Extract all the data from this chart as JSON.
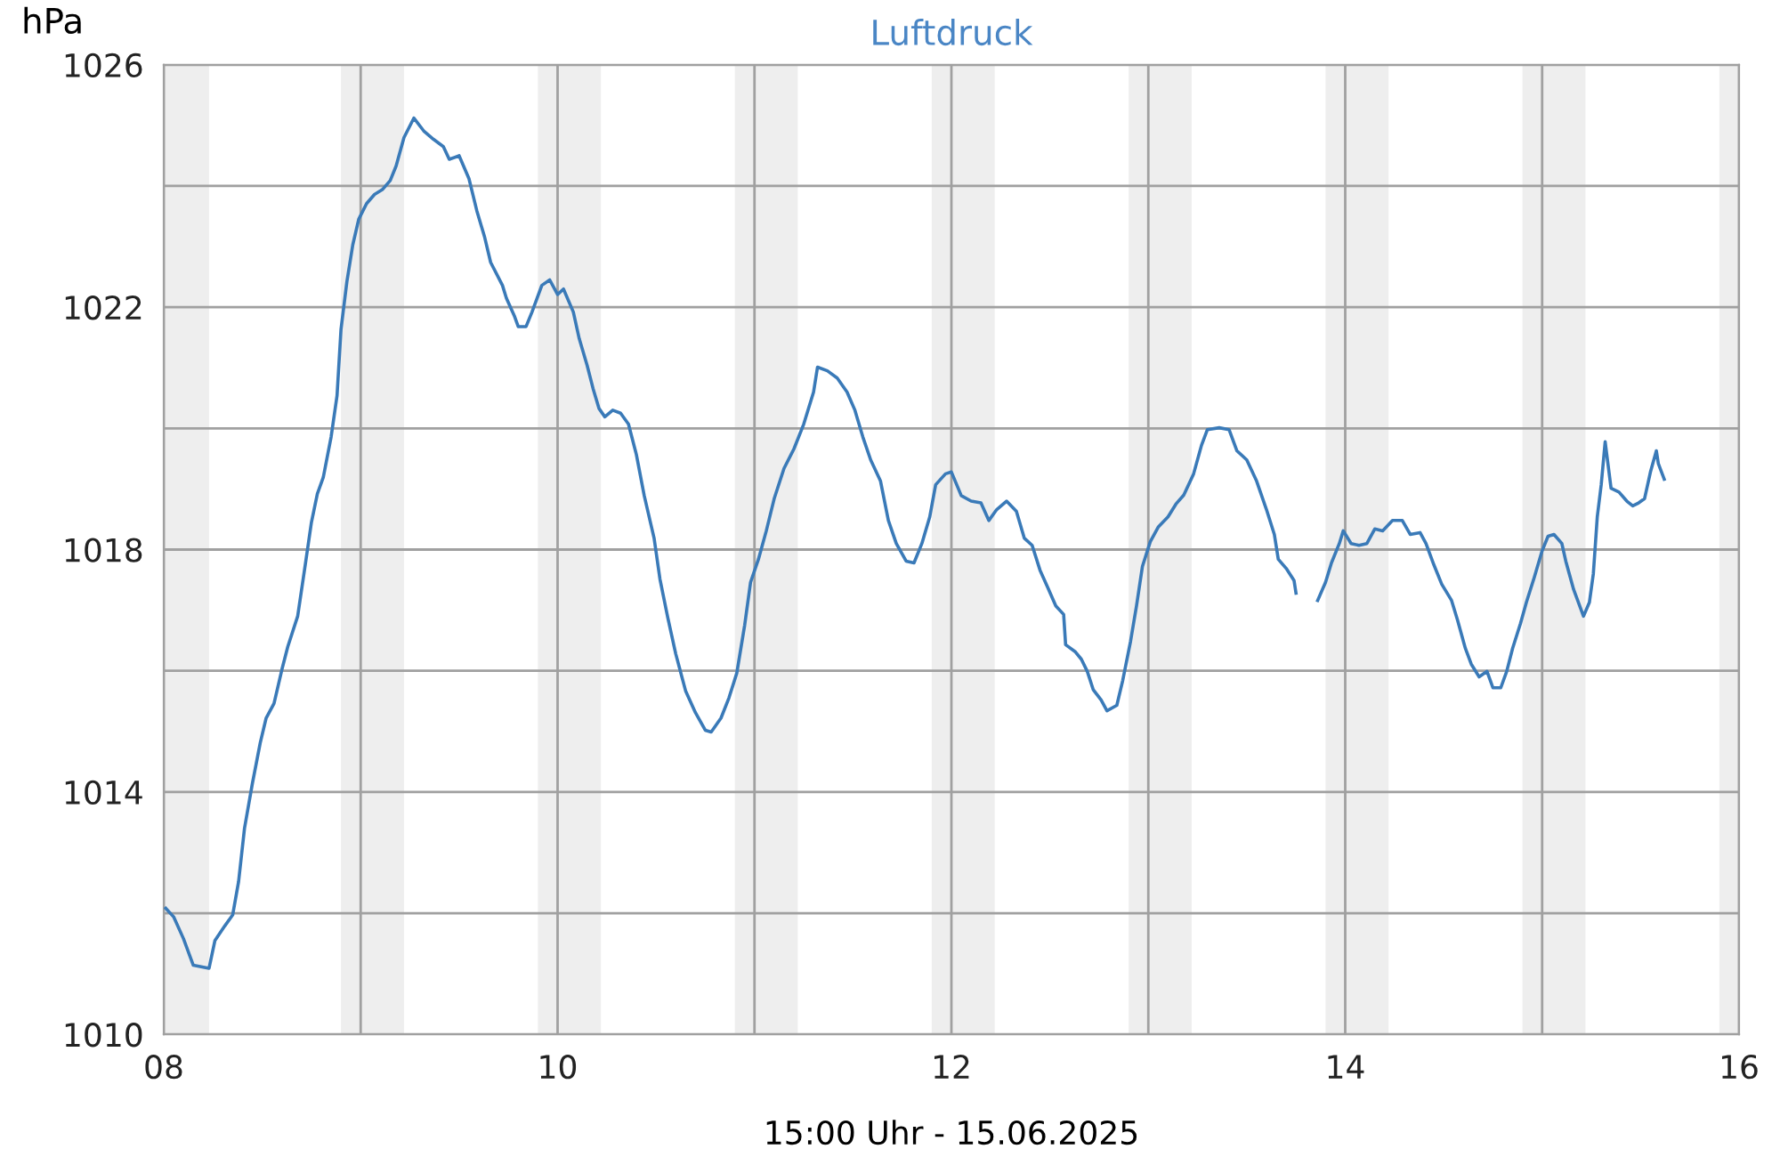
{
  "chart_data": {
    "type": "line",
    "title": "Luftdruck",
    "ylabel": "hPa",
    "xlabel": "15:00 Uhr - 15.06.2025",
    "xlim": [
      8,
      16
    ],
    "ylim": [
      1010,
      1026
    ],
    "xticks": [
      {
        "value": 8,
        "label": "08"
      },
      {
        "value": 9,
        "label": null
      },
      {
        "value": 10,
        "label": "10"
      },
      {
        "value": 11,
        "label": null
      },
      {
        "value": 12,
        "label": "12"
      },
      {
        "value": 13,
        "label": null
      },
      {
        "value": 14,
        "label": "14"
      },
      {
        "value": 15,
        "label": null
      },
      {
        "value": 16,
        "label": "16"
      }
    ],
    "yticks": [
      1010,
      {
        "value": 1012,
        "label": null
      },
      1014,
      {
        "value": 1016,
        "label": null
      },
      1018,
      {
        "value": 1020,
        "label": null
      },
      1022,
      {
        "value": 1024,
        "label": null
      },
      1026
    ],
    "grid": true,
    "legend": false,
    "marker": "none",
    "line_style": "solid",
    "bands": [
      {
        "axis": "x",
        "from": 8.0,
        "to": 8.23,
        "color": "#eeeeee"
      },
      {
        "axis": "x",
        "from": 8.9,
        "to": 9.22,
        "color": "#eeeeee"
      },
      {
        "axis": "x",
        "from": 9.9,
        "to": 10.22,
        "color": "#eeeeee"
      },
      {
        "axis": "x",
        "from": 10.9,
        "to": 11.22,
        "color": "#eeeeee"
      },
      {
        "axis": "x",
        "from": 11.9,
        "to": 12.22,
        "color": "#eeeeee"
      },
      {
        "axis": "x",
        "from": 12.9,
        "to": 13.22,
        "color": "#eeeeee"
      },
      {
        "axis": "x",
        "from": 13.9,
        "to": 14.22,
        "color": "#eeeeee"
      },
      {
        "axis": "x",
        "from": 14.9,
        "to": 15.22,
        "color": "#eeeeee"
      },
      {
        "axis": "x",
        "from": 15.9,
        "to": 16.0,
        "color": "#eeeeee"
      }
    ],
    "series": [
      {
        "color": "#3a7ab8",
        "x": [
          8.01,
          8.05,
          8.1,
          8.15,
          8.23,
          8.26,
          8.31,
          8.35,
          8.38,
          8.41,
          8.45,
          8.49,
          8.52,
          8.56,
          8.6,
          8.63,
          8.68,
          8.72,
          8.75,
          8.78,
          8.81,
          8.85,
          8.88,
          8.9,
          8.93,
          8.96,
          8.99,
          9.03,
          9.07,
          9.11,
          9.15,
          9.18,
          9.22,
          9.27,
          9.32,
          9.37,
          9.42,
          9.45,
          9.5,
          9.55,
          9.59,
          9.63,
          9.66,
          9.72,
          9.74,
          9.78,
          9.8,
          9.84,
          9.87,
          9.92,
          9.96,
          10.0,
          10.03,
          10.08,
          10.11,
          10.15,
          10.18,
          10.21,
          10.24,
          10.28,
          10.32,
          10.36,
          10.4,
          10.44,
          10.49,
          10.52,
          10.56,
          10.6,
          10.65,
          10.7,
          10.75,
          10.78,
          10.83,
          10.87,
          10.91,
          10.95,
          10.98,
          11.02,
          11.06,
          11.1,
          11.15,
          11.2,
          11.25,
          11.3,
          11.32,
          11.37,
          11.42,
          11.47,
          11.51,
          11.55,
          11.59,
          11.64,
          11.68,
          11.72,
          11.77,
          11.81,
          11.85,
          11.89,
          11.92,
          11.97,
          12.0,
          12.05,
          12.1,
          12.15,
          12.19,
          12.23,
          12.28,
          12.33,
          12.37,
          12.41,
          12.45,
          12.49,
          12.53,
          12.57,
          12.58,
          12.63,
          12.66,
          12.69,
          12.72,
          12.76,
          12.79,
          12.84,
          12.87,
          12.91,
          12.94,
          12.97,
          13.01,
          13.05,
          13.1,
          13.14,
          13.18,
          13.23,
          13.27,
          13.3,
          13.36,
          13.41,
          13.45,
          13.5,
          13.55,
          13.6,
          13.64,
          13.66,
          13.7,
          13.74,
          13.75,
          13.8,
          13.86,
          13.9,
          13.93,
          13.97,
          13.99,
          14.03,
          14.07,
          14.11,
          14.15,
          14.19,
          14.24,
          14.29,
          14.33,
          14.38,
          14.41,
          14.45,
          14.49,
          14.54,
          14.57,
          14.61,
          14.64,
          14.68,
          14.72,
          14.75,
          14.79,
          14.82,
          14.85,
          14.89,
          14.92,
          14.96,
          15.0,
          15.03,
          15.06,
          15.1,
          15.12,
          15.16,
          15.2,
          15.21,
          15.24,
          15.26,
          15.28,
          15.3,
          15.32,
          15.35,
          15.39,
          15.43,
          15.46,
          15.49,
          15.52,
          15.55,
          15.58,
          15.59,
          15.62
        ],
        "values": [
          1012.08,
          1011.94,
          1011.58,
          1011.14,
          1011.09,
          1011.55,
          1011.79,
          1011.97,
          1012.52,
          1013.4,
          1014.14,
          1014.81,
          1015.22,
          1015.46,
          1016.02,
          1016.4,
          1016.9,
          1017.78,
          1018.45,
          1018.92,
          1019.19,
          1019.86,
          1020.54,
          1021.63,
          1022.42,
          1023.03,
          1023.45,
          1023.71,
          1023.86,
          1023.94,
          1024.09,
          1024.33,
          1024.8,
          1025.12,
          1024.91,
          1024.77,
          1024.65,
          1024.44,
          1024.5,
          1024.12,
          1023.59,
          1023.15,
          1022.74,
          1022.36,
          1022.15,
          1021.86,
          1021.68,
          1021.68,
          1021.92,
          1022.36,
          1022.45,
          1022.21,
          1022.3,
          1021.92,
          1021.48,
          1021.04,
          1020.66,
          1020.33,
          1020.19,
          1020.3,
          1020.25,
          1020.07,
          1019.57,
          1018.89,
          1018.19,
          1017.51,
          1016.87,
          1016.28,
          1015.67,
          1015.31,
          1015.02,
          1014.99,
          1015.22,
          1015.55,
          1015.96,
          1016.75,
          1017.46,
          1017.84,
          1018.31,
          1018.84,
          1019.34,
          1019.66,
          1020.07,
          1020.6,
          1021.01,
          1020.95,
          1020.83,
          1020.6,
          1020.3,
          1019.86,
          1019.48,
          1019.13,
          1018.48,
          1018.1,
          1017.81,
          1017.78,
          1018.1,
          1018.54,
          1019.07,
          1019.25,
          1019.28,
          1018.89,
          1018.8,
          1018.77,
          1018.48,
          1018.66,
          1018.8,
          1018.63,
          1018.19,
          1018.07,
          1017.66,
          1017.37,
          1017.07,
          1016.93,
          1016.43,
          1016.31,
          1016.19,
          1015.99,
          1015.69,
          1015.52,
          1015.34,
          1015.43,
          1015.84,
          1016.49,
          1017.07,
          1017.72,
          1018.13,
          1018.37,
          1018.54,
          1018.75,
          1018.9,
          1019.25,
          1019.72,
          1019.98,
          1020.01,
          1019.98,
          1019.63,
          1019.48,
          1019.13,
          1018.66,
          1018.25,
          1017.84,
          1017.69,
          1017.49,
          1017.28,
          null,
          1017.16,
          1017.46,
          1017.78,
          1018.1,
          1018.31,
          1018.1,
          1018.07,
          1018.1,
          1018.34,
          1018.31,
          1018.48,
          1018.48,
          1018.25,
          1018.28,
          1018.1,
          1017.75,
          1017.43,
          1017.16,
          1016.84,
          1016.37,
          1016.11,
          1015.9,
          1015.99,
          1015.72,
          1015.72,
          1015.99,
          1016.37,
          1016.78,
          1017.13,
          1017.54,
          1017.98,
          1018.22,
          1018.25,
          1018.1,
          1017.81,
          1017.34,
          1016.99,
          1016.9,
          1017.13,
          1017.6,
          1018.54,
          1019.07,
          1019.78,
          1019.01,
          1018.95,
          1018.8,
          1018.72,
          1018.77,
          1018.84,
          1019.28,
          1019.63,
          1019.42,
          1019.16
        ]
      }
    ]
  }
}
